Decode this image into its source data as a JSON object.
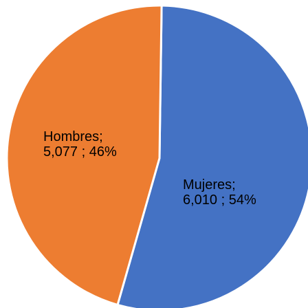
{
  "chart_data": {
    "type": "pie",
    "title": "",
    "slices": [
      {
        "category": "Mujeres",
        "value": 6010,
        "percent": 54,
        "label_line1": "Mujeres;",
        "label_line2": "6,010 ; 54%",
        "color": "#4472c4"
      },
      {
        "category": "Hombres",
        "value": 5077,
        "percent": 46,
        "label_line1": "Hombres;",
        "label_line2": "5,077 ; 46%",
        "color": "#ed7d31"
      }
    ],
    "legend": "none"
  }
}
